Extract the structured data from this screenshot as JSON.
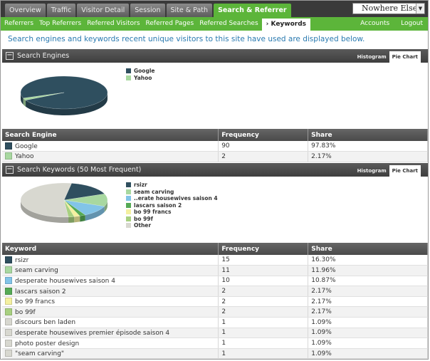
{
  "nav": {
    "tabs": [
      {
        "label": "Overview"
      },
      {
        "label": "Traffic"
      },
      {
        "label": "Visitor Detail"
      },
      {
        "label": "Session"
      },
      {
        "label": "Site & Path"
      },
      {
        "label": "Search & Referrer"
      }
    ],
    "site_select": "Nowhere Else"
  },
  "subnav": {
    "items": [
      {
        "label": "Referrers"
      },
      {
        "label": "Top Referrers"
      },
      {
        "label": "Referred Visitors"
      },
      {
        "label": "Referred Pages"
      },
      {
        "label": "Referred Searches"
      },
      {
        "label": "Keywords"
      }
    ],
    "right": [
      {
        "label": "Accounts"
      },
      {
        "label": "Logout"
      }
    ]
  },
  "intro": "Search engines and keywords recent unique visitors to this site have used are displayed below.",
  "engines": {
    "title": "Search Engines",
    "view_tabs": {
      "histogram": "Histogram",
      "pie": "Pie Chart"
    },
    "columns": [
      "Search Engine",
      "Frequency",
      "Share"
    ],
    "rows": [
      {
        "name": "Google",
        "frequency": "90",
        "share": "97.83%",
        "color": "#2f4f5f"
      },
      {
        "name": "Yahoo",
        "frequency": "2",
        "share": "2.17%",
        "color": "#a8d8a0"
      }
    ]
  },
  "keywords": {
    "title": "Search Keywords (50 Most Frequent)",
    "view_tabs": {
      "histogram": "Histogram",
      "pie": "Pie Chart"
    },
    "legend": [
      {
        "label": "rsizr",
        "color": "#2f4f5f"
      },
      {
        "label": "seam carving",
        "color": "#a8d8a0"
      },
      {
        "label": "..erate housewives saison 4",
        "color": "#82c4e8"
      },
      {
        "label": "lascars saison 2",
        "color": "#55aa55"
      },
      {
        "label": "bo 99 francs",
        "color": "#f4f0a0"
      },
      {
        "label": "bo 99f",
        "color": "#a8d080"
      },
      {
        "label": "Other",
        "color": "#d8d8d0"
      }
    ],
    "columns": [
      "Keyword",
      "Frequency",
      "Share"
    ],
    "rows": [
      {
        "name": "rsizr",
        "frequency": "15",
        "share": "16.30%",
        "color": "#2f4f5f"
      },
      {
        "name": "seam carving",
        "frequency": "11",
        "share": "11.96%",
        "color": "#a8d8a0"
      },
      {
        "name": "desperate housewives saison 4",
        "frequency": "10",
        "share": "10.87%",
        "color": "#82c4e8"
      },
      {
        "name": "lascars saison 2",
        "frequency": "2",
        "share": "2.17%",
        "color": "#55aa55"
      },
      {
        "name": "bo 99 francs",
        "frequency": "2",
        "share": "2.17%",
        "color": "#f4f0a0"
      },
      {
        "name": "bo 99f",
        "frequency": "2",
        "share": "2.17%",
        "color": "#a8d080"
      },
      {
        "name": "discours ben laden",
        "frequency": "1",
        "share": "1.09%",
        "color": "#d8d8d0"
      },
      {
        "name": "desperate housewives premier épisode saison 4",
        "frequency": "1",
        "share": "1.09%",
        "color": "#d8d8d0"
      },
      {
        "name": "photo poster design",
        "frequency": "1",
        "share": "1.09%",
        "color": "#d8d8d0"
      },
      {
        "name": "\"seam carving\"",
        "frequency": "1",
        "share": "1.09%",
        "color": "#d8d8d0"
      }
    ]
  },
  "chart_data": [
    {
      "type": "pie",
      "categories": [
        "Google",
        "Yahoo"
      ],
      "values": [
        97.83,
        2.17
      ]
    },
    {
      "type": "pie",
      "categories": [
        "rsizr",
        "seam carving",
        "..erate housewives saison 4",
        "lascars saison 2",
        "bo 99 francs",
        "bo 99f",
        "Other"
      ],
      "values": [
        16.3,
        11.96,
        10.87,
        2.17,
        2.17,
        2.17,
        54.36
      ]
    }
  ]
}
